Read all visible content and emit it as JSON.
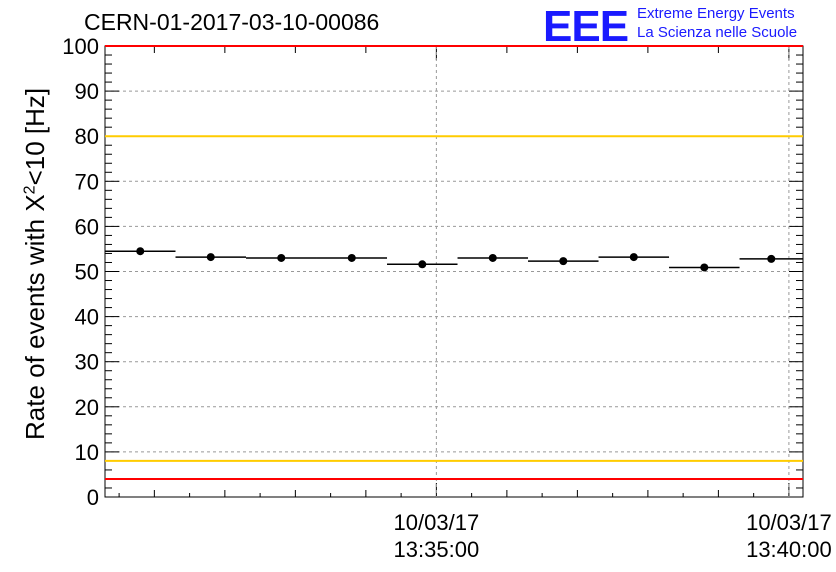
{
  "title": "CERN-01-2017-03-10-00086",
  "logo": {
    "mark": "EEE",
    "line1": "Extreme Energy Events",
    "line2": "La Scienza nelle Scuole",
    "color": "#1a1aff"
  },
  "chart_data": {
    "type": "scatter",
    "ylabel_prefix": "Rate of events with X",
    "ylabel_sup": "2",
    "ylabel_suffix": "<10 [Hz]",
    "ylim": [
      0,
      100
    ],
    "yticks": [
      0,
      10,
      20,
      30,
      40,
      50,
      60,
      70,
      80,
      90,
      100
    ],
    "xlim_minutes": [
      13.3,
      23.2
    ],
    "xticks": [
      {
        "min": 18,
        "date": "10/03/17",
        "time": "13:35:00"
      },
      {
        "min": 23,
        "date": "10/03/17",
        "time": "13:40:00"
      }
    ],
    "grid": true,
    "reference_lines": [
      {
        "y": 100,
        "color": "#ff0000"
      },
      {
        "y": 80,
        "color": "#ffcc00"
      },
      {
        "y": 8,
        "color": "#ffcc00"
      },
      {
        "y": 4,
        "color": "#ff0000"
      }
    ],
    "points": [
      {
        "x0": 13.3,
        "x1": 14.3,
        "y": 54.5
      },
      {
        "x0": 14.3,
        "x1": 15.3,
        "y": 53.2
      },
      {
        "x0": 15.3,
        "x1": 16.3,
        "y": 53.0
      },
      {
        "x0": 16.3,
        "x1": 17.3,
        "y": 53.0
      },
      {
        "x0": 17.3,
        "x1": 18.3,
        "y": 51.6
      },
      {
        "x0": 18.3,
        "x1": 19.3,
        "y": 53.0
      },
      {
        "x0": 19.3,
        "x1": 20.3,
        "y": 52.3
      },
      {
        "x0": 20.3,
        "x1": 21.3,
        "y": 53.2
      },
      {
        "x0": 21.3,
        "x1": 22.3,
        "y": 50.9
      },
      {
        "x0": 22.3,
        "x1": 23.2,
        "y": 52.8
      }
    ]
  }
}
